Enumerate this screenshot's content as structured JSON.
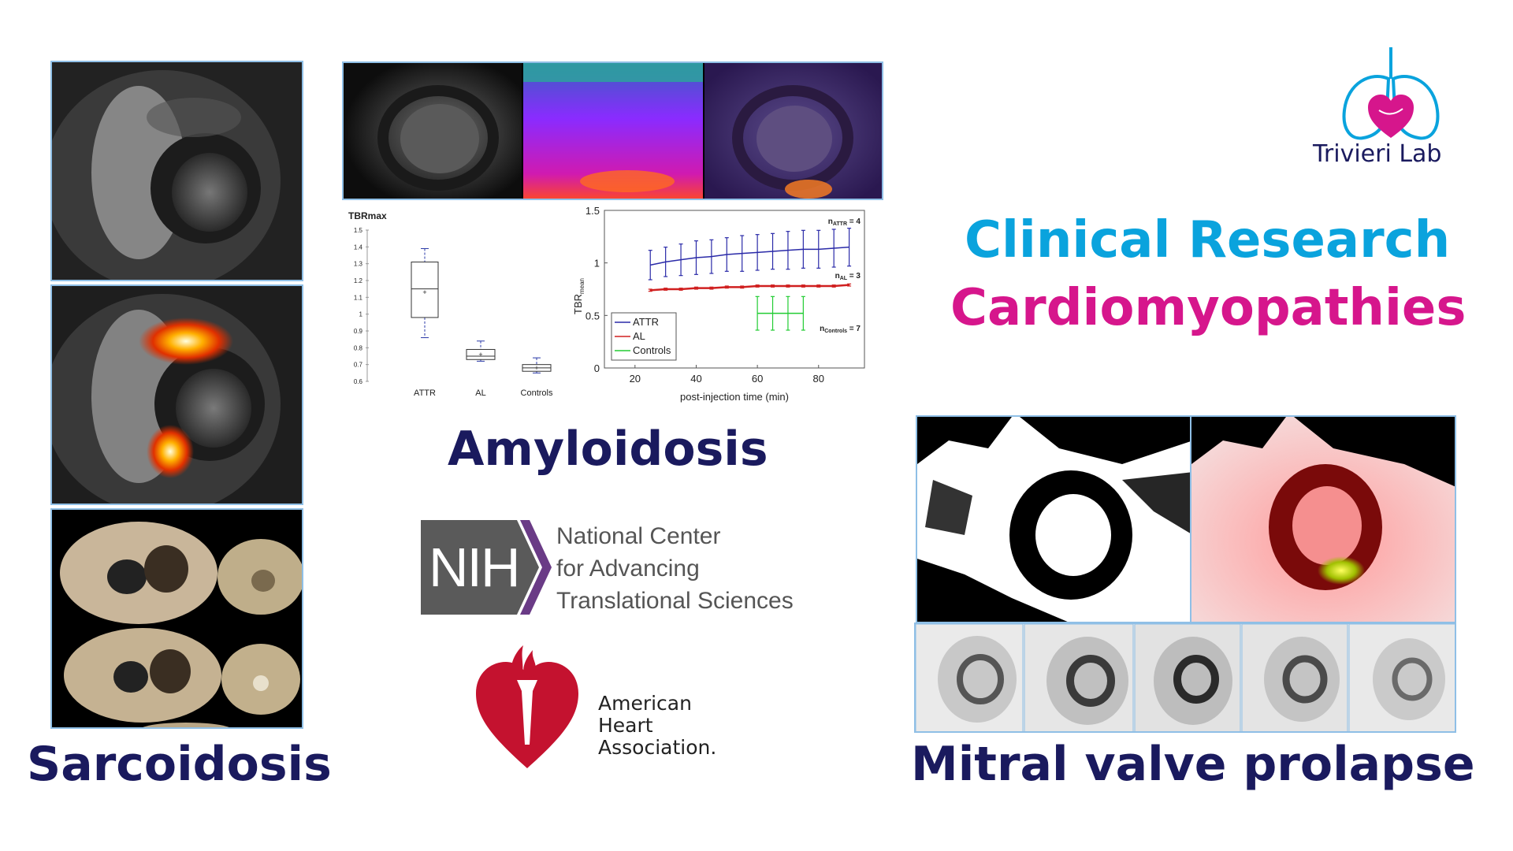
{
  "logo": {
    "name": "Trivieri Lab",
    "icon": "lungs-heart-icon"
  },
  "headings": {
    "line1": "Clinical Research",
    "line2": "Cardiomyopathies",
    "line1_color": "#0aa3dd",
    "line2_color": "#d6168c"
  },
  "sections": {
    "sarcoidosis": "Sarcoidosis",
    "amyloidosis": "Amyloidosis",
    "mitral": "Mitral valve prolapse"
  },
  "box_chart": {
    "ylabel": "TBRmax",
    "yticks": [
      "1.5",
      "1.4",
      "1.3",
      "1.2",
      "1.1",
      "1",
      "0.9",
      "0.8",
      "0.7",
      "0.6"
    ],
    "categories": [
      "ATTR",
      "AL",
      "Controls"
    ]
  },
  "line_chart": {
    "ylabel": "TBR",
    "ylabel_sub": "mean",
    "xlabel": "post-injection time (min)",
    "xticks": [
      "20",
      "40",
      "60",
      "80"
    ],
    "yticks": [
      "0",
      "0.5",
      "1",
      "1.5"
    ],
    "legend": [
      "ATTR",
      "AL",
      "Controls"
    ],
    "n_attr": "n",
    "n_attr_sub": "ATTR",
    "n_attr_val": " = 4",
    "n_al": "n",
    "n_al_sub": "AL",
    "n_al_val": " = 3",
    "n_ctrl": "n",
    "n_ctrl_sub": "Controls",
    "n_ctrl_val": " = 7"
  },
  "chart_data": [
    {
      "type": "box",
      "ylabel": "TBRmax",
      "categories": [
        "ATTR",
        "AL",
        "Controls"
      ],
      "ylim": [
        0.6,
        1.5
      ],
      "boxes": [
        {
          "name": "ATTR",
          "whisker_low": 0.86,
          "q1": 0.98,
          "median": 1.15,
          "q3": 1.31,
          "whisker_high": 1.39,
          "mean": 1.13
        },
        {
          "name": "AL",
          "whisker_low": 0.72,
          "q1": 0.73,
          "median": 0.75,
          "q3": 0.79,
          "whisker_high": 0.84,
          "mean": 0.76
        },
        {
          "name": "Controls",
          "whisker_low": 0.65,
          "q1": 0.66,
          "median": 0.68,
          "q3": 0.7,
          "whisker_high": 0.74,
          "mean": 0.68
        }
      ]
    },
    {
      "type": "line",
      "xlabel": "post-injection time (min)",
      "ylabel": "TBRmean",
      "xlim": [
        10,
        95
      ],
      "ylim": [
        0,
        1.5
      ],
      "series": [
        {
          "name": "ATTR",
          "color": "#2a2aa8",
          "x": [
            25,
            30,
            35,
            40,
            45,
            50,
            55,
            60,
            65,
            70,
            75,
            80,
            85,
            90
          ],
          "y": [
            0.98,
            1.01,
            1.03,
            1.05,
            1.06,
            1.08,
            1.09,
            1.1,
            1.11,
            1.12,
            1.13,
            1.13,
            1.14,
            1.15
          ],
          "err": [
            0.14,
            0.14,
            0.15,
            0.16,
            0.16,
            0.16,
            0.17,
            0.17,
            0.17,
            0.18,
            0.18,
            0.18,
            0.18,
            0.18
          ]
        },
        {
          "name": "AL",
          "color": "#d02020",
          "x": [
            25,
            30,
            35,
            40,
            45,
            50,
            55,
            60,
            65,
            70,
            75,
            80,
            85,
            90
          ],
          "y": [
            0.74,
            0.75,
            0.75,
            0.76,
            0.76,
            0.77,
            0.77,
            0.78,
            0.78,
            0.78,
            0.78,
            0.78,
            0.78,
            0.79
          ],
          "err": [
            0.01,
            0.01,
            0.01,
            0.01,
            0.01,
            0.01,
            0.01,
            0.01,
            0.01,
            0.01,
            0.01,
            0.01,
            0.01,
            0.01
          ]
        },
        {
          "name": "Controls",
          "color": "#22cc33",
          "x": [
            60,
            65,
            70,
            75
          ],
          "y": [
            0.52,
            0.52,
            0.52,
            0.52
          ],
          "err": [
            0.16,
            0.16,
            0.16,
            0.16
          ]
        }
      ]
    }
  ],
  "nih": {
    "badge": "NIH",
    "line1": "National Center",
    "line2": "for Advancing",
    "line3": "Translational Sciences",
    "color": "#555555",
    "accent": "#6a3b86"
  },
  "aha": {
    "line1": "American",
    "line2": "Heart",
    "line3": "Association.",
    "color": "#c4122f"
  }
}
